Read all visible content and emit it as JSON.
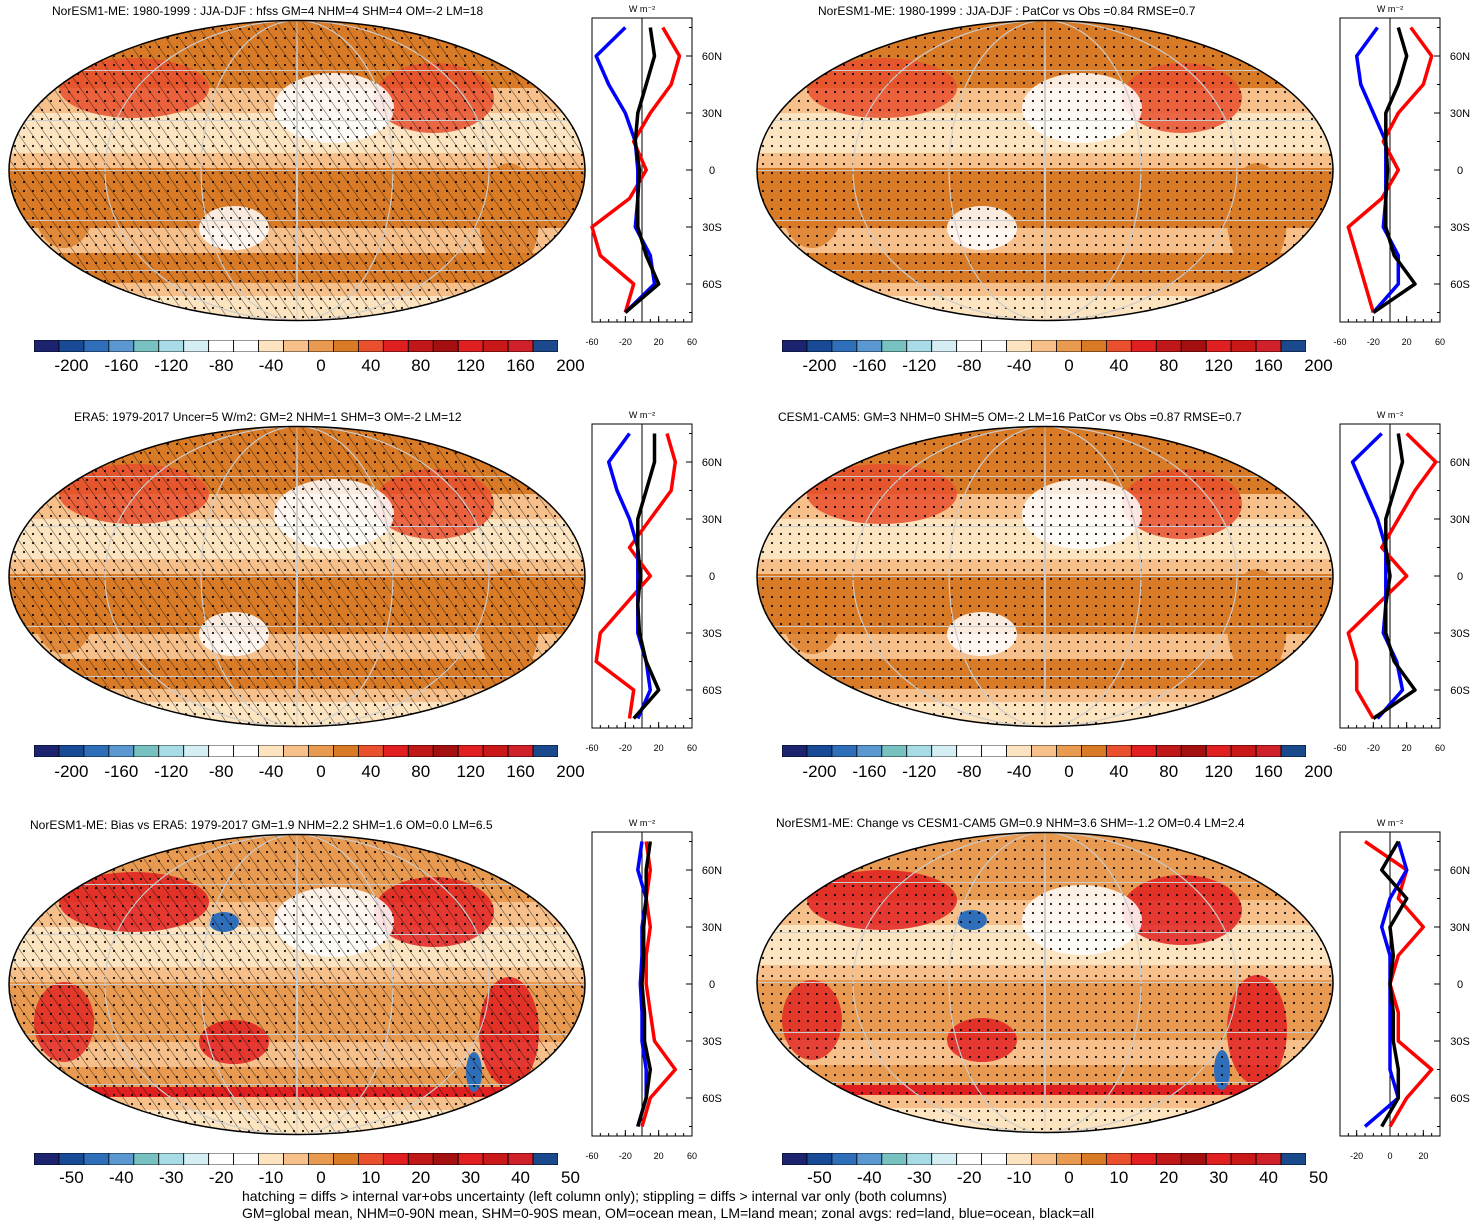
{
  "panels": [
    {
      "title": "NorESM1-ME: 1980-1999 : JJA-DJF : hfss GM=4 NHM=4 SHM=4 OM=-2 LM=18"
    },
    {
      "title": "NorESM1-ME: 1980-1999 : JJA-DJF : PatCor vs Obs =0.84 RMSE=0.7"
    },
    {
      "title": "ERA5: 1979-2017 Uncer=5 W/m2: GM=2 NHM=1 SHM=3 OM=-2 LM=12"
    },
    {
      "title": "CESM1-CAM5: GM=3 NHM=0 SHM=5 OM=-2 LM=16 PatCor vs Obs =0.87 RMSE=0.7"
    },
    {
      "title": "NorESM1-ME: Bias vs ERA5: 1979-2017 GM=1.9 NHM=2.2 SHM=1.6 OM=0.0 LM=6.5"
    },
    {
      "title": "NorESM1-ME: Change vs CESM1-CAM5 GM=0.9 NHM=3.6 SHM=-1.2 OM=0.4 LM=2.4"
    }
  ],
  "colorbars": {
    "full_labels": [
      "-200",
      "-160",
      "-120",
      "-80",
      "-40",
      "0",
      "40",
      "80",
      "120",
      "160",
      "200"
    ],
    "diff_labels": [
      "-50",
      "-40",
      "-30",
      "-20",
      "-10",
      "0",
      "10",
      "20",
      "30",
      "40",
      "50"
    ],
    "colors": [
      "#1c2470",
      "#184a96",
      "#2f6fba",
      "#5b98d2",
      "#77c2c0",
      "#a9dbe6",
      "#d5eef3",
      "#ffffff",
      "#ffffff",
      "#fde4c0",
      "#f7c08a",
      "#e89a50",
      "#d97b26",
      "#e8502e",
      "#e02020",
      "#c01818",
      "#a41010",
      "#e02020",
      "#c81818",
      "#d0202a",
      "#1a4a8c"
    ]
  },
  "profile_axis": {
    "units": "W m⁻²",
    "lat_labels": [
      "60N",
      "30N",
      "0",
      "30S",
      "60S"
    ],
    "x_labels_wide": [
      "-60",
      "-20",
      "20",
      "60"
    ],
    "x_labels_narrow": [
      "-20",
      "0",
      "20"
    ]
  },
  "footer": {
    "line1": "hatching = diffs > internal var+obs uncertainty (left column only); stippling = diffs > internal var only (both columns)",
    "line2": "GM=global mean, NHM=0-90N mean, SHM=0-90S mean, OM=ocean mean, LM=land mean; zonal avgs: red=land, blue=ocean, black=all"
  },
  "chart_data": [
    {
      "type": "line",
      "panel": 1,
      "title": "NorESM1-ME: 1980-1999 : JJA-DJF : hfss GM=4 NHM=4 SHM=4 OM=-2 LM=18",
      "xlim": [
        -60,
        60
      ],
      "ylim": [
        -80,
        80
      ],
      "y": [
        75,
        60,
        45,
        30,
        15,
        0,
        -15,
        -30,
        -45,
        -60,
        -75
      ],
      "series": [
        {
          "name": "land",
          "color": "#ff0000",
          "values": [
            25,
            45,
            35,
            10,
            -10,
            5,
            -15,
            -60,
            -50,
            -10,
            -20
          ]
        },
        {
          "name": "ocean",
          "color": "#0000ff",
          "values": [
            -20,
            -55,
            -40,
            -20,
            -8,
            -5,
            -5,
            -8,
            10,
            15,
            -20
          ]
        },
        {
          "name": "all",
          "color": "#000000",
          "values": [
            10,
            15,
            5,
            -5,
            -8,
            -3,
            -5,
            -5,
            5,
            20,
            -20
          ]
        }
      ]
    },
    {
      "type": "line",
      "panel": 2,
      "title": "NorESM1-ME: 1980-1999 : JJA-DJF : PatCor vs Obs =0.84 RMSE=0.7",
      "xlim": [
        -60,
        60
      ],
      "ylim": [
        -80,
        80
      ],
      "y": [
        75,
        60,
        45,
        30,
        15,
        0,
        -15,
        -30,
        -45,
        -60,
        -75
      ],
      "series": [
        {
          "name": "land",
          "color": "#ff0000",
          "values": [
            25,
            50,
            40,
            10,
            -8,
            10,
            -10,
            -50,
            -40,
            -30,
            -20
          ]
        },
        {
          "name": "ocean",
          "color": "#0000ff",
          "values": [
            -15,
            -40,
            -35,
            -20,
            -5,
            -5,
            -5,
            -8,
            10,
            10,
            -20
          ]
        },
        {
          "name": "all",
          "color": "#000000",
          "values": [
            10,
            20,
            10,
            -5,
            -5,
            -3,
            -5,
            -5,
            5,
            30,
            -20
          ]
        }
      ]
    },
    {
      "type": "line",
      "panel": 3,
      "title": "ERA5: 1979-2017 Uncer=5 W/m2: GM=2 NHM=1 SHM=3 OM=-2 LM=12",
      "xlim": [
        -60,
        60
      ],
      "ylim": [
        -80,
        80
      ],
      "y": [
        75,
        60,
        45,
        30,
        15,
        0,
        -15,
        -30,
        -45,
        -60,
        -75
      ],
      "series": [
        {
          "name": "land",
          "color": "#ff0000",
          "values": [
            30,
            40,
            35,
            10,
            -15,
            10,
            -20,
            -50,
            -55,
            -10,
            -15
          ]
        },
        {
          "name": "ocean",
          "color": "#0000ff",
          "values": [
            -15,
            -40,
            -30,
            -15,
            -5,
            -5,
            -5,
            -5,
            5,
            10,
            -5
          ]
        },
        {
          "name": "all",
          "color": "#000000",
          "values": [
            15,
            15,
            5,
            -5,
            -5,
            -2,
            -5,
            -3,
            5,
            20,
            -10
          ]
        }
      ]
    },
    {
      "type": "line",
      "panel": 4,
      "title": "CESM1-CAM5: GM=3 NHM=0 SHM=5 OM=-2 LM=16 PatCor vs Obs =0.87 RMSE=0.7",
      "xlim": [
        -60,
        60
      ],
      "ylim": [
        -80,
        80
      ],
      "y": [
        75,
        60,
        45,
        30,
        15,
        0,
        -15,
        -30,
        -45,
        -60,
        -75
      ],
      "series": [
        {
          "name": "land",
          "color": "#ff0000",
          "values": [
            20,
            55,
            30,
            10,
            -10,
            20,
            -15,
            -50,
            -40,
            -40,
            -20
          ]
        },
        {
          "name": "ocean",
          "color": "#0000ff",
          "values": [
            -10,
            -45,
            -30,
            -15,
            -5,
            -5,
            -5,
            -8,
            8,
            15,
            -15
          ]
        },
        {
          "name": "all",
          "color": "#000000",
          "values": [
            10,
            15,
            5,
            -5,
            -5,
            0,
            -5,
            -5,
            5,
            30,
            -20
          ]
        }
      ]
    },
    {
      "type": "line",
      "panel": 5,
      "title": "NorESM1-ME: Bias vs ERA5: 1979-2017 GM=1.9 NHM=2.2 SHM=1.6 OM=0.0 LM=6.5",
      "xlim": [
        -60,
        60
      ],
      "ylim": [
        -80,
        80
      ],
      "y": [
        75,
        60,
        45,
        30,
        15,
        0,
        -15,
        -30,
        -45,
        -60,
        -75
      ],
      "series": [
        {
          "name": "land",
          "color": "#ff0000",
          "values": [
            5,
            10,
            5,
            10,
            5,
            5,
            10,
            15,
            40,
            10,
            0
          ]
        },
        {
          "name": "ocean",
          "color": "#0000ff",
          "values": [
            0,
            -5,
            5,
            0,
            0,
            -2,
            0,
            0,
            5,
            5,
            -5
          ]
        },
        {
          "name": "all",
          "color": "#000000",
          "values": [
            10,
            5,
            5,
            2,
            2,
            0,
            3,
            3,
            10,
            5,
            -5
          ]
        }
      ]
    },
    {
      "type": "line",
      "panel": 6,
      "title": "NorESM1-ME: Change vs CESM1-CAM5 GM=0.9 NHM=3.6 SHM=-1.2 OM=0.4 LM=2.4",
      "xlim": [
        -30,
        30
      ],
      "ylim": [
        -80,
        80
      ],
      "y": [
        75,
        60,
        45,
        30,
        15,
        0,
        -15,
        -30,
        -45,
        -60,
        -75
      ],
      "series": [
        {
          "name": "land",
          "color": "#ff0000",
          "values": [
            -15,
            10,
            5,
            20,
            5,
            0,
            5,
            5,
            25,
            10,
            0
          ]
        },
        {
          "name": "ocean",
          "color": "#0000ff",
          "values": [
            5,
            10,
            0,
            -5,
            0,
            0,
            0,
            0,
            0,
            5,
            -15
          ]
        },
        {
          "name": "all",
          "color": "#000000",
          "values": [
            5,
            -5,
            10,
            0,
            2,
            0,
            2,
            2,
            5,
            5,
            -5
          ]
        }
      ]
    }
  ]
}
